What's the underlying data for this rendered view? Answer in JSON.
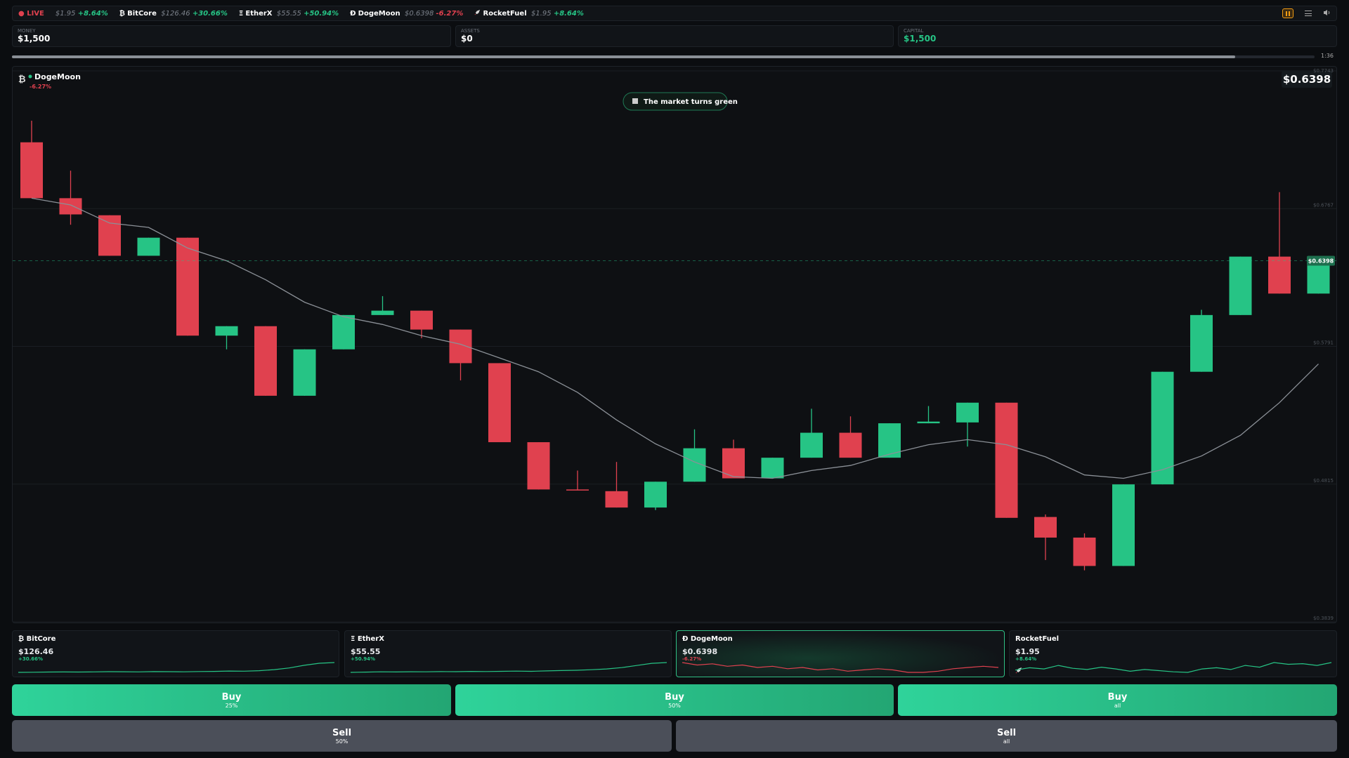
{
  "ticker": {
    "live": "LIVE",
    "items": [
      {
        "price": "$1.95",
        "change": "+8.64%"
      },
      {
        "symbol": "₿",
        "name": "BitCore",
        "price": "$126.46",
        "change": "+30.66%"
      },
      {
        "symbol": "Ξ",
        "name": "EtherX",
        "price": "$55.55",
        "change": "+50.94%"
      },
      {
        "symbol": "Ð",
        "name": "DogeMoon",
        "price": "$0.6398",
        "change": "-6.27%"
      },
      {
        "name": "RocketFuel",
        "price": "$1.95",
        "change": "+8.64%"
      }
    ]
  },
  "stats": [
    {
      "label": "MONEY",
      "value": "$1,500"
    },
    {
      "label": "ASSETS",
      "value": "$0"
    },
    {
      "label": "CAPITAL",
      "value": "$1,500"
    }
  ],
  "progress": {
    "percent": 93.9,
    "time": "1:36"
  },
  "chart_data": {
    "type": "candlestick",
    "icon": "₿",
    "title": "DogeMoon",
    "change": "-6.27%",
    "price_label": "$0.6398",
    "annotation": "The market turns green",
    "up_color": "#26c485",
    "down_color": "#e0414f",
    "grid": true,
    "ylim": [
      0.3839,
      0.7743
    ],
    "yticks": [
      {
        "value": 0.3839,
        "label": "$0.3839"
      },
      {
        "value": 0.4815,
        "label": "$0.4815"
      },
      {
        "value": 0.5791,
        "label": "$0.5791"
      },
      {
        "value": 0.6767,
        "label": "$0.6767"
      },
      {
        "value": 0.7743,
        "label": "$0.7743"
      }
    ],
    "open": [
      0.7237,
      0.6841,
      0.672,
      0.6433,
      0.6561,
      0.5867,
      0.5934,
      0.5441,
      0.577,
      0.6013,
      0.6044,
      0.591,
      0.5672,
      0.5112,
      0.4777,
      0.4765,
      0.4649,
      0.4832,
      0.5069,
      0.4856,
      0.5002,
      0.5179,
      0.5002,
      0.5246,
      0.5252,
      0.5392,
      0.4582,
      0.4436,
      0.4235,
      0.4813,
      0.5611,
      0.6013,
      0.6427,
      0.6165
    ],
    "high": [
      0.739,
      0.7036,
      0.672,
      0.6561,
      0.6561,
      0.5934,
      0.5934,
      0.577,
      0.6013,
      0.6147,
      0.6044,
      0.591,
      0.5672,
      0.5112,
      0.4911,
      0.4972,
      0.4832,
      0.5203,
      0.513,
      0.5002,
      0.5349,
      0.5295,
      0.5246,
      0.5368,
      0.5392,
      0.5392,
      0.46,
      0.4466,
      0.4813,
      0.5611,
      0.605,
      0.6427,
      0.6884,
      0.6398
    ],
    "low": [
      0.6841,
      0.6653,
      0.6433,
      0.6433,
      0.5867,
      0.577,
      0.5441,
      0.5441,
      0.577,
      0.6013,
      0.5849,
      0.555,
      0.5112,
      0.4777,
      0.4771,
      0.4649,
      0.4631,
      0.4832,
      0.4856,
      0.4856,
      0.5002,
      0.5002,
      0.5002,
      0.5246,
      0.5081,
      0.4576,
      0.4277,
      0.4204,
      0.4235,
      0.4813,
      0.5611,
      0.6013,
      0.6165,
      0.6165
    ],
    "close": [
      0.6841,
      0.6726,
      0.6433,
      0.6561,
      0.5867,
      0.5934,
      0.5441,
      0.577,
      0.6013,
      0.6044,
      0.591,
      0.5672,
      0.5112,
      0.4777,
      0.4771,
      0.4649,
      0.4832,
      0.5069,
      0.4856,
      0.5002,
      0.5179,
      0.5002,
      0.5246,
      0.5258,
      0.5392,
      0.4576,
      0.4436,
      0.4235,
      0.4813,
      0.5611,
      0.6013,
      0.6427,
      0.6165,
      0.6398
    ],
    "ma": {
      "color": "#8b9097",
      "values": [
        0.6841,
        0.6793,
        0.6665,
        0.6634,
        0.6488,
        0.6397,
        0.6263,
        0.6104,
        0.6001,
        0.5946,
        0.5867,
        0.5806,
        0.5709,
        0.5611,
        0.5465,
        0.527,
        0.51,
        0.4972,
        0.4868,
        0.4856,
        0.4911,
        0.4947,
        0.5027,
        0.5094,
        0.513,
        0.5094,
        0.5008,
        0.488,
        0.4856,
        0.4917,
        0.5014,
        0.5161,
        0.5392,
        0.5666
      ]
    }
  },
  "cards": [
    {
      "symbol": "₿",
      "name": "BitCore",
      "price": "$126.46",
      "change": "+30.66%",
      "color": "#26c485",
      "spark": [
        97,
        97.5,
        98,
        98.3,
        98,
        98.5,
        99,
        98.8,
        98.5,
        99.2,
        99,
        98.7,
        99.5,
        100,
        101,
        100.5,
        102,
        105,
        110,
        118,
        124,
        126
      ]
    },
    {
      "symbol": "Ξ",
      "name": "EtherX",
      "price": "$55.55",
      "change": "+50.94%",
      "color": "#26c485",
      "spark": [
        37,
        37.5,
        38,
        37.8,
        38.2,
        38,
        38.5,
        38.3,
        38.8,
        38.6,
        39,
        39.4,
        39,
        39.8,
        40.5,
        41,
        42,
        43.5,
        46,
        50,
        54,
        55.5
      ]
    },
    {
      "symbol": "Ð",
      "name": "DogeMoon",
      "price": "$0.6398",
      "change": "-6.27%",
      "color": "#e0414f",
      "spark": [
        0.68,
        0.66,
        0.67,
        0.65,
        0.66,
        0.64,
        0.65,
        0.63,
        0.64,
        0.62,
        0.63,
        0.61,
        0.62,
        0.63,
        0.62,
        0.6,
        0.6,
        0.61,
        0.63,
        0.64,
        0.65,
        0.64
      ]
    },
    {
      "name": "RocketFuel",
      "price": "$1.95",
      "change": "+8.64%",
      "color": "#26c485",
      "spark": [
        1.82,
        1.86,
        1.84,
        1.9,
        1.85,
        1.83,
        1.87,
        1.84,
        1.8,
        1.83,
        1.81,
        1.79,
        1.78,
        1.84,
        1.86,
        1.83,
        1.9,
        1.87,
        1.95,
        1.92,
        1.93,
        1.9,
        1.95
      ]
    }
  ],
  "buttons": {
    "buy": [
      {
        "label": "Buy",
        "sub": "25%"
      },
      {
        "label": "Buy",
        "sub": "50%"
      },
      {
        "label": "Buy",
        "sub": "all"
      }
    ],
    "sell": [
      {
        "label": "Sell",
        "sub": "50%"
      },
      {
        "label": "Sell",
        "sub": "all"
      }
    ]
  }
}
